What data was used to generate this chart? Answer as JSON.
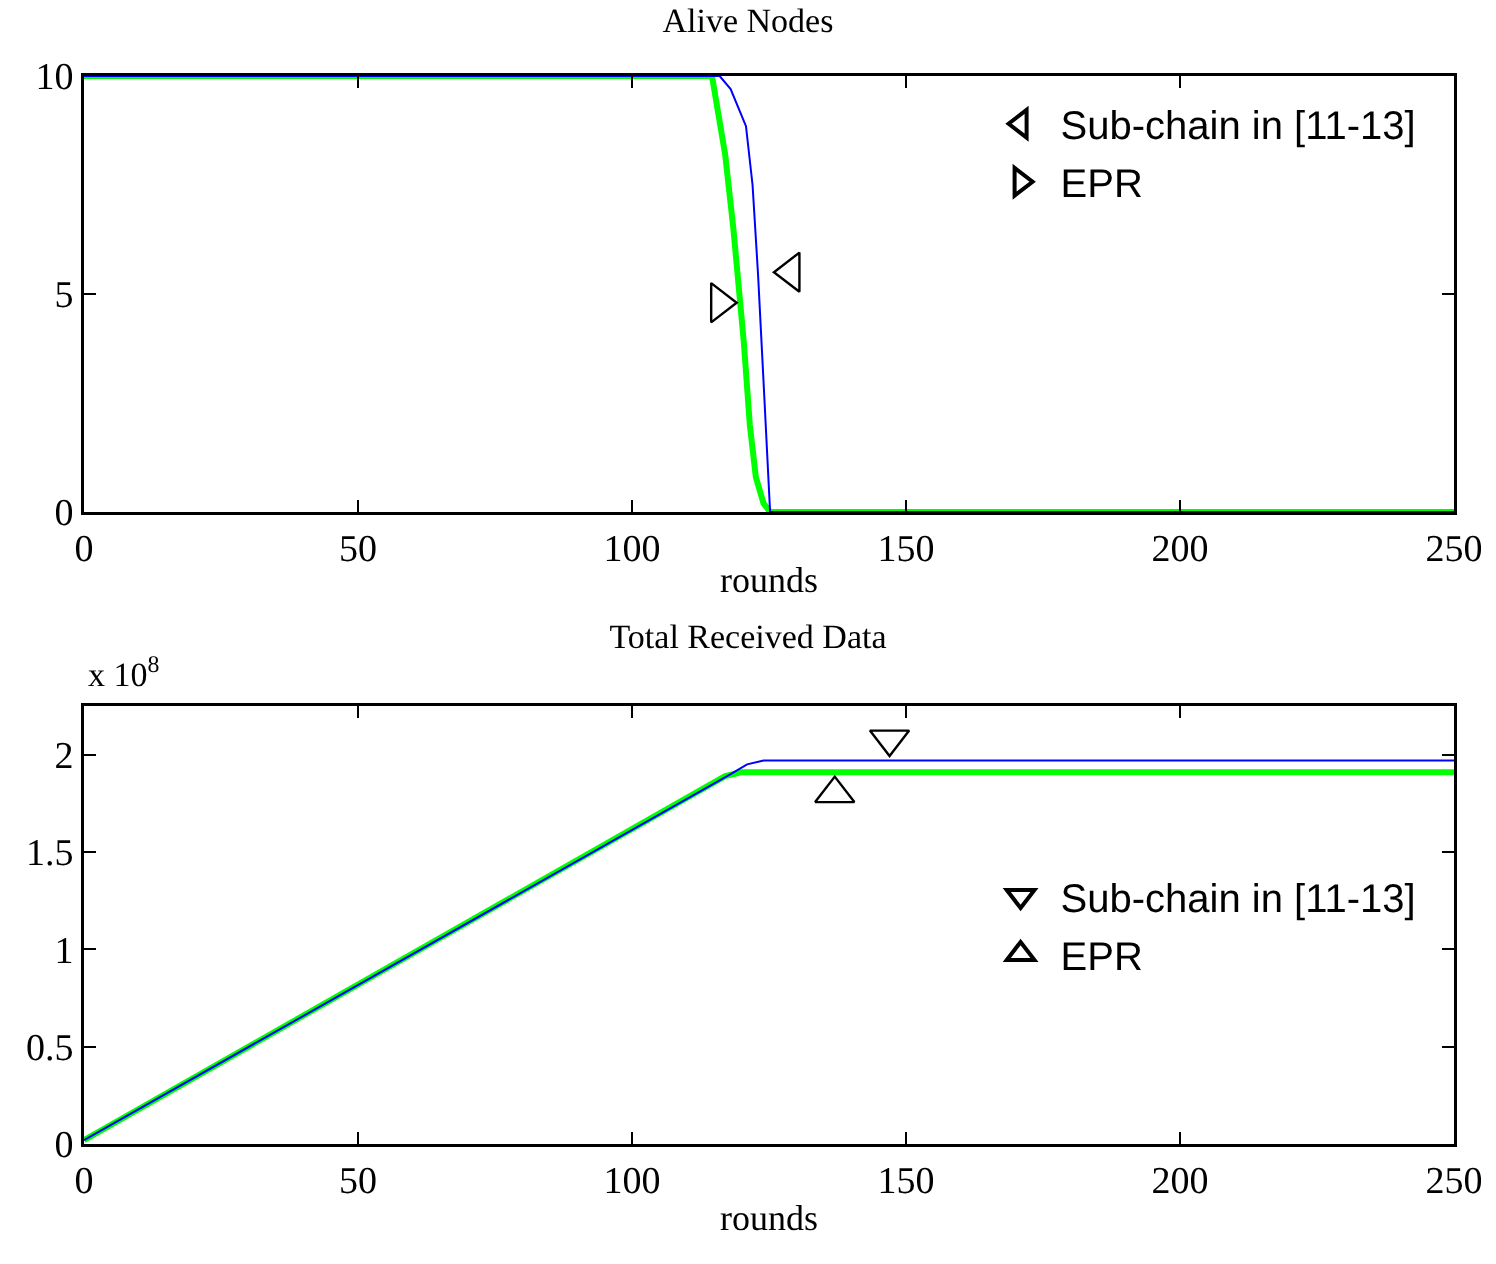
{
  "chart_data": [
    {
      "type": "line",
      "title": "Alive Nodes",
      "xlabel": "rounds",
      "xlim": [
        0,
        250
      ],
      "xticks": [
        0,
        50,
        100,
        150,
        200,
        250
      ],
      "ylim": [
        0,
        10
      ],
      "yticks": [
        0,
        5,
        10
      ],
      "grid": false,
      "legend": "top right",
      "line_style": "solid",
      "series": [
        {
          "color": "#00ff00",
          "marker": "none",
          "x": [
            0,
            114.6,
            117,
            118.5,
            120.4,
            121.5,
            122.6,
            124,
            125.2,
            250
          ],
          "values": [
            10,
            10,
            8.2,
            6.5,
            3.9,
            2,
            0.8,
            0.2,
            0,
            0
          ]
        },
        {
          "color": "#0000ff",
          "marker": "none",
          "x": [
            0,
            116,
            118,
            120.8,
            122,
            123,
            124,
            125.2,
            250
          ],
          "values": [
            10,
            10,
            9.7,
            8.85,
            7.5,
            5.45,
            3,
            0,
            0
          ]
        },
        {
          "type": "scatter",
          "name": "Sub-chain in [11-13]",
          "color": "#000000",
          "marker": "triangle-left",
          "x": [
            129
          ],
          "values": [
            5.5
          ]
        },
        {
          "type": "scatter",
          "name": "EPR",
          "color": "#000000",
          "marker": "triangle-right",
          "x": [
            116
          ],
          "values": [
            4.8
          ]
        }
      ]
    },
    {
      "type": "line",
      "title": "Total Received Data",
      "xlabel": "rounds",
      "annotations": [
        "x 10$^{8}$"
      ],
      "xlim": [
        0,
        250
      ],
      "xticks": [
        0,
        50,
        100,
        150,
        200,
        250
      ],
      "ylim": [
        0,
        2.25
      ],
      "yticks": [
        0,
        0.5,
        1,
        1.5,
        2
      ],
      "grid": false,
      "legend": "right",
      "line_style": "solid",
      "series": [
        {
          "color": "#00ff00",
          "marker": "none",
          "x": [
            0,
            117,
            120,
            250
          ],
          "values": [
            0.02,
            1.89,
            1.91,
            1.91
          ]
        },
        {
          "color": "#0000ff",
          "marker": "none",
          "x": [
            0,
            118,
            121,
            124,
            250
          ],
          "values": [
            0.02,
            1.9,
            1.95,
            1.97,
            1.97
          ]
        },
        {
          "type": "scatter",
          "name": "Sub-chain in [11-13]",
          "color": "#000000",
          "marker": "triangle-down",
          "x": [
            147
          ],
          "values": [
            2.08
          ]
        },
        {
          "type": "scatter",
          "name": "EPR",
          "color": "#000000",
          "marker": "triangle-up",
          "x": [
            137
          ],
          "values": [
            1.8
          ]
        }
      ]
    }
  ]
}
